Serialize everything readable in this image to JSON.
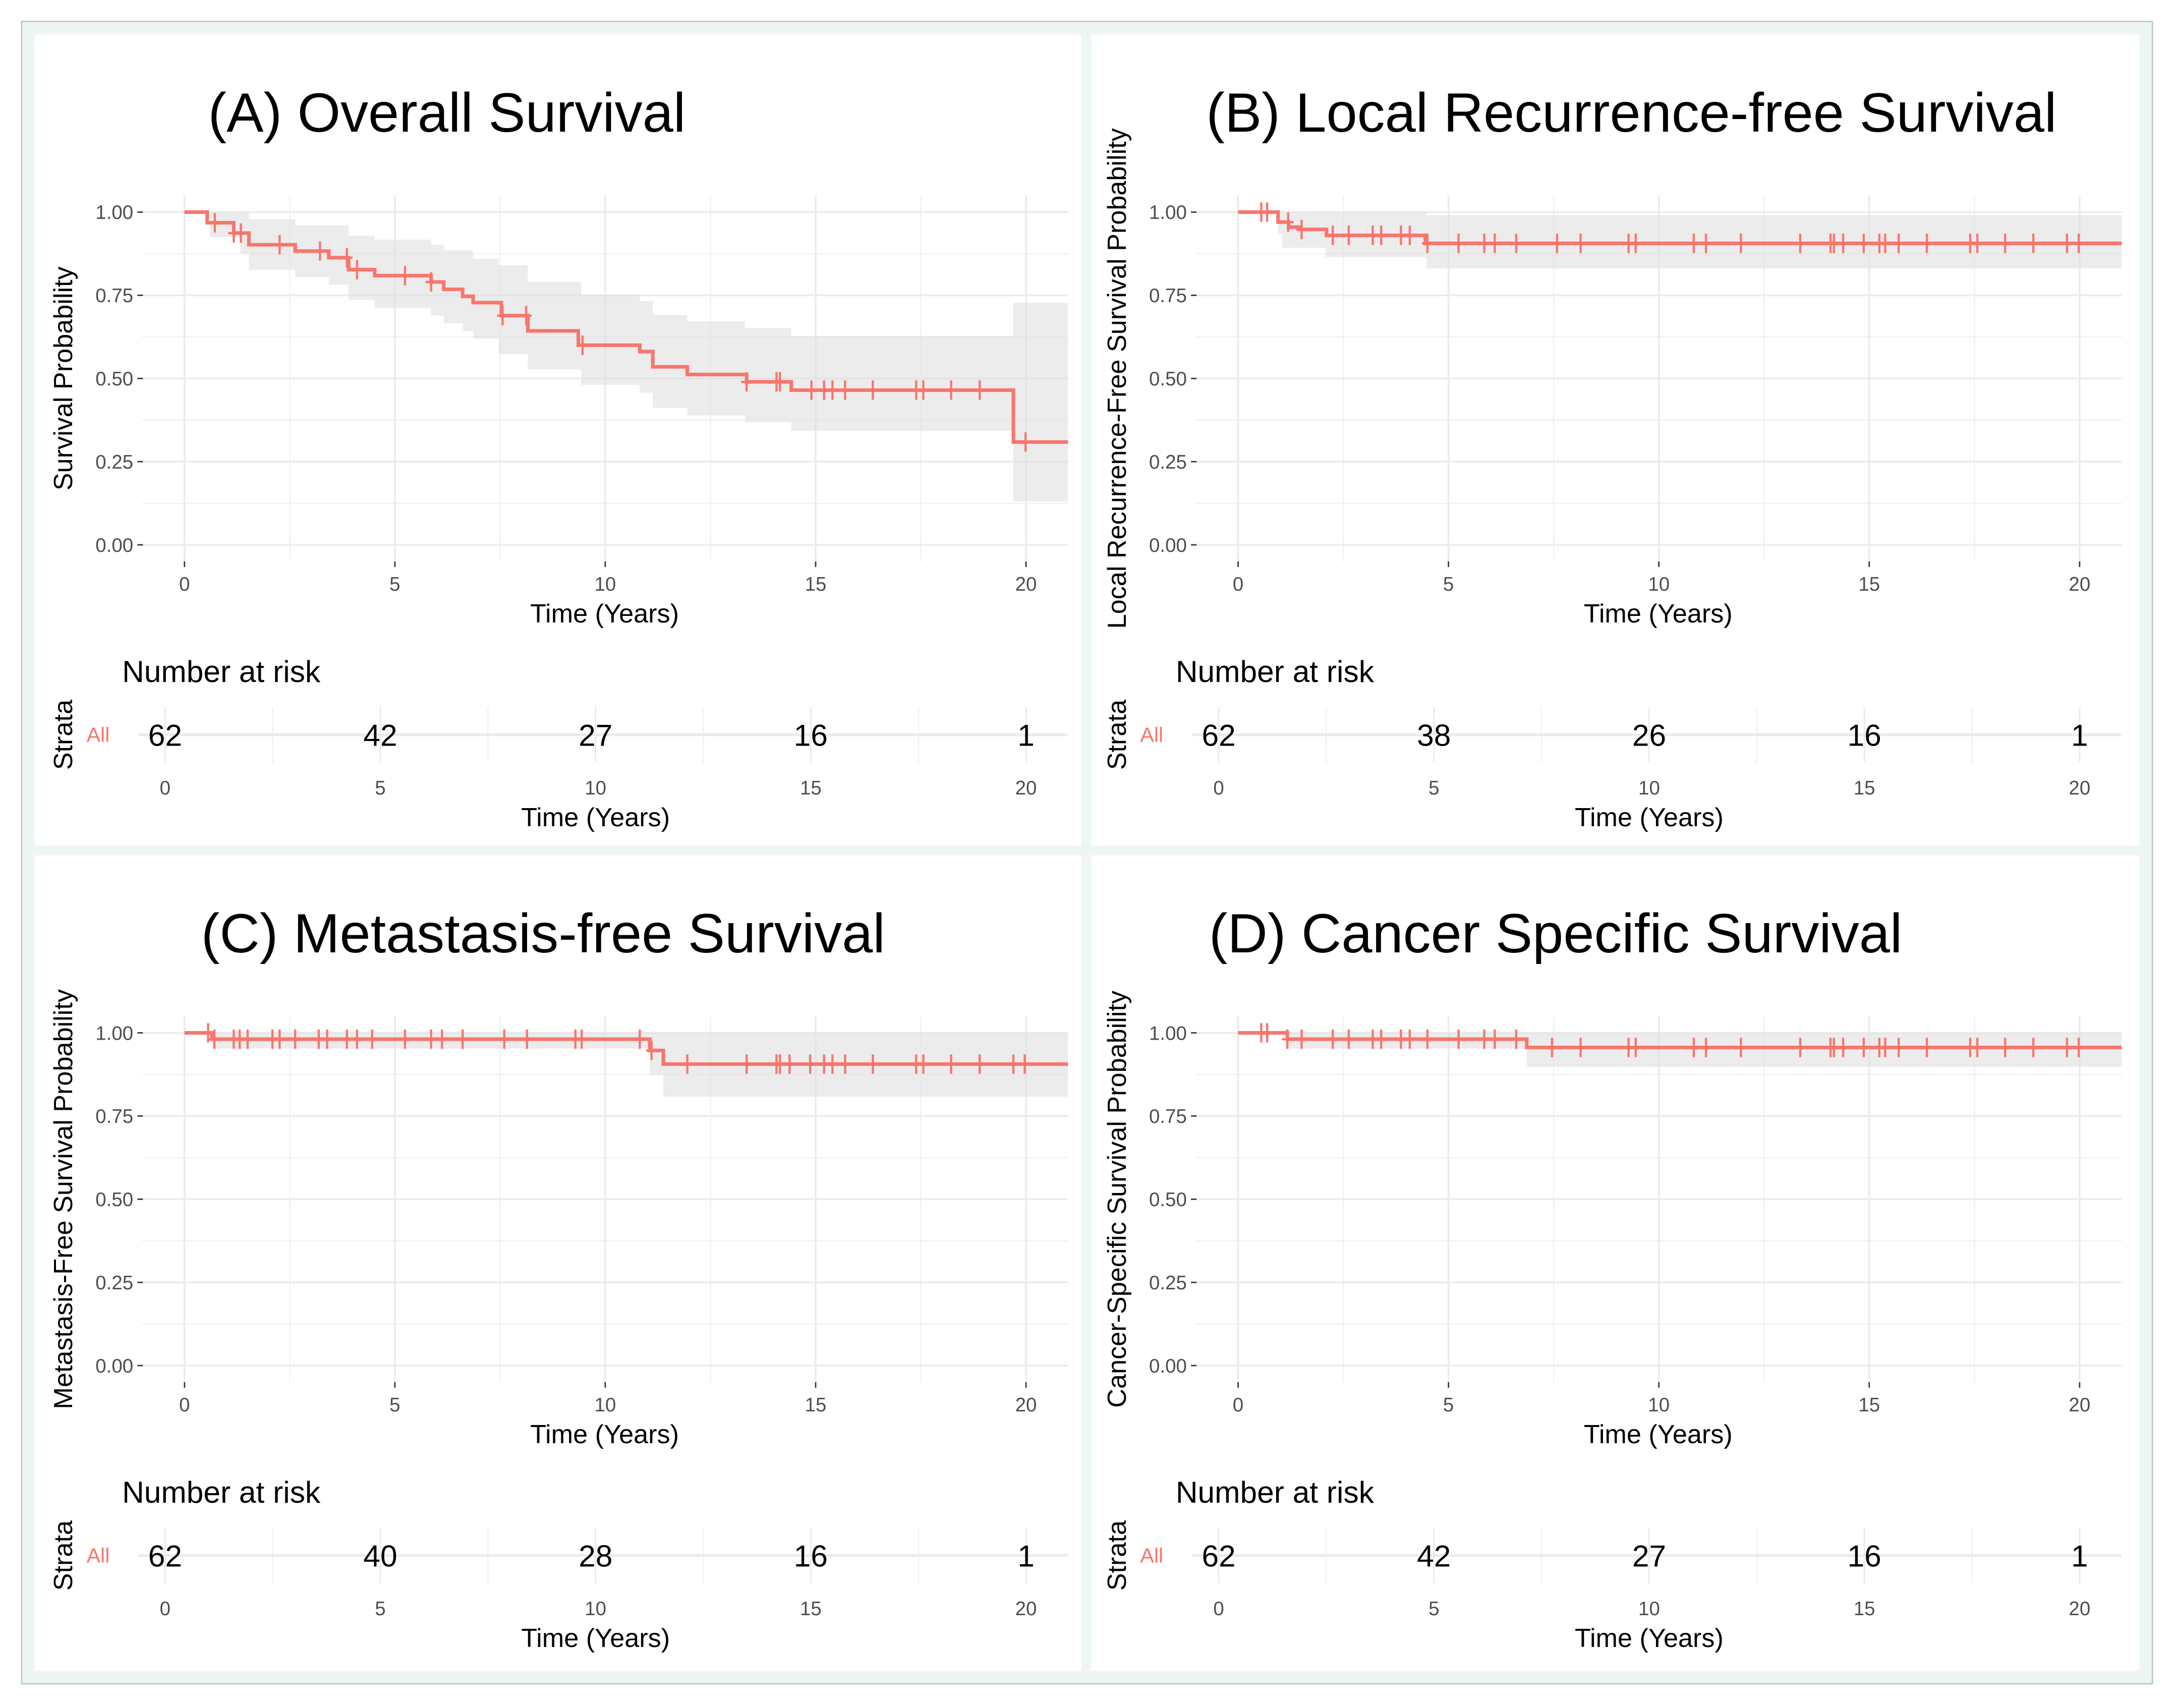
{
  "colors": {
    "line": "#F8766D",
    "ci": "#e0e0e0",
    "grid": "#ebebeb",
    "frame": "#eef6f4",
    "border": "#b9cbc6"
  },
  "chart_data": [
    {
      "type": "line",
      "title": "(A) Overall Survival",
      "ylabel": "Survival Probability",
      "xlabel": "Time (Years)",
      "xlim": [
        -1,
        21
      ],
      "ylim": [
        0,
        1
      ],
      "xticks": [
        "0",
        "5",
        "10",
        "15",
        "20"
      ],
      "yticks": [
        "0.00",
        "0.25",
        "0.50",
        "0.75",
        "1.00"
      ],
      "steps": [
        [
          0,
          1
        ],
        [
          0.54,
          0.968
        ],
        [
          1.17,
          0.937
        ],
        [
          1.53,
          0.902
        ],
        [
          2.63,
          0.883
        ],
        [
          3.43,
          0.863
        ],
        [
          3.9,
          0.827
        ],
        [
          4.52,
          0.809
        ],
        [
          5.86,
          0.79
        ],
        [
          6.16,
          0.768
        ],
        [
          6.61,
          0.747
        ],
        [
          6.86,
          0.728
        ],
        [
          7.53,
          0.689
        ],
        [
          8.16,
          0.643
        ],
        [
          9.36,
          0.6
        ],
        [
          10.82,
          0.581
        ],
        [
          11.13,
          0.535
        ],
        [
          11.95,
          0.512
        ],
        [
          13.36,
          0.49
        ],
        [
          14.42,
          0.465
        ],
        [
          19.7,
          0.309
        ]
      ],
      "ci_upper": [
        [
          0,
          1
        ],
        [
          1.53,
          0.979
        ],
        [
          2.63,
          0.96
        ],
        [
          3.9,
          0.929
        ],
        [
          4.52,
          0.917
        ],
        [
          5.86,
          0.902
        ],
        [
          6.16,
          0.886
        ],
        [
          6.86,
          0.86
        ],
        [
          7.46,
          0.84
        ],
        [
          8.16,
          0.79
        ],
        [
          9.43,
          0.751
        ],
        [
          10.82,
          0.732
        ],
        [
          11.13,
          0.691
        ],
        [
          11.95,
          0.672
        ],
        [
          13.32,
          0.652
        ],
        [
          14.42,
          0.628
        ],
        [
          19.7,
          0.728
        ]
      ],
      "ci_lower": [
        [
          0,
          1
        ],
        [
          0.6,
          0.925
        ],
        [
          1.33,
          0.875
        ],
        [
          1.53,
          0.827
        ],
        [
          2.63,
          0.805
        ],
        [
          3.43,
          0.782
        ],
        [
          3.9,
          0.736
        ],
        [
          4.52,
          0.712
        ],
        [
          5.86,
          0.689
        ],
        [
          6.16,
          0.666
        ],
        [
          6.61,
          0.643
        ],
        [
          6.86,
          0.62
        ],
        [
          7.46,
          0.573
        ],
        [
          8.16,
          0.527
        ],
        [
          9.43,
          0.481
        ],
        [
          10.82,
          0.457
        ],
        [
          11.13,
          0.411
        ],
        [
          11.95,
          0.389
        ],
        [
          13.32,
          0.369
        ],
        [
          14.42,
          0.342
        ],
        [
          19.7,
          0.131
        ]
      ],
      "censored": [
        0.72,
        1.17,
        1.34,
        2.26,
        3.22,
        3.86,
        4.1,
        5.24,
        5.86,
        7.56,
        8.12,
        9.46,
        13.36,
        14.07,
        14.15,
        14.9,
        15.2,
        15.4,
        15.7,
        16.36,
        17.39,
        17.56,
        18.22,
        18.9,
        19.99
      ],
      "risk_table": {
        "title": "Number at risk",
        "strata_label": "Strata",
        "group": "All",
        "times": [
          0,
          5,
          10,
          15,
          20
        ],
        "counts": [
          "62",
          "42",
          "27",
          "16",
          "1"
        ],
        "xticks": [
          "0",
          "5",
          "10",
          "15",
          "20"
        ],
        "xlabel": "Time (Years)"
      }
    },
    {
      "type": "line",
      "title": "(B) Local Recurrence-free Survival",
      "ylabel": "Local Recurrence-Free Survival Probability",
      "xlabel": "Time (Years)",
      "xlim": [
        -1,
        21
      ],
      "ylim": [
        0,
        1
      ],
      "xticks": [
        "0",
        "5",
        "10",
        "15",
        "20"
      ],
      "yticks": [
        "0.00",
        "0.25",
        "0.50",
        "0.75",
        "1.00"
      ],
      "steps": [
        [
          0,
          1
        ],
        [
          0.95,
          0.97
        ],
        [
          1.2,
          0.955
        ],
        [
          1.45,
          0.948
        ],
        [
          2.1,
          0.93
        ],
        [
          4.45,
          0.906
        ]
      ],
      "ci_upper": [
        [
          0,
          1
        ],
        [
          4.48,
          0.991
        ]
      ],
      "ci_lower": [
        [
          0,
          1
        ],
        [
          0.95,
          0.935
        ],
        [
          1.05,
          0.893
        ],
        [
          2.08,
          0.865
        ],
        [
          4.48,
          0.831
        ]
      ],
      "censored": [
        0.55,
        0.69,
        1.19,
        1.51,
        2.25,
        2.63,
        3.2,
        3.4,
        3.87,
        4.08,
        4.5,
        5.24,
        5.85,
        6.1,
        6.61,
        7.58,
        8.14,
        9.28,
        9.45,
        10.83,
        11.12,
        11.95,
        13.36,
        14.08,
        14.16,
        14.38,
        14.87,
        15.24,
        15.38,
        15.7,
        16.37,
        17.4,
        17.57,
        18.23,
        18.9,
        19.7,
        19.98
      ],
      "risk_table": {
        "title": "Number at risk",
        "strata_label": "Strata",
        "group": "All",
        "times": [
          0,
          5,
          10,
          15,
          20
        ],
        "counts": [
          "62",
          "38",
          "26",
          "16",
          "1"
        ],
        "xticks": [
          "0",
          "5",
          "10",
          "15",
          "20"
        ],
        "xlabel": "Time (Years)"
      }
    },
    {
      "type": "line",
      "title": "(C) Metastasis-free Survival",
      "ylabel": "Metastasis-Free Survival Probability",
      "xlabel": "Time (Years)",
      "xlim": [
        -1,
        21
      ],
      "ylim": [
        0,
        1
      ],
      "xticks": [
        "0",
        "5",
        "10",
        "15",
        "20"
      ],
      "yticks": [
        "0.00",
        "0.25",
        "0.50",
        "0.75",
        "1.00"
      ],
      "steps": [
        [
          0,
          1
        ],
        [
          0.65,
          0.981
        ],
        [
          11.06,
          0.947
        ],
        [
          11.38,
          0.906
        ]
      ],
      "ci_upper": [
        [
          0,
          1
        ]
      ],
      "ci_lower": [
        [
          0,
          1
        ],
        [
          0.65,
          0.953
        ],
        [
          11.06,
          0.873
        ],
        [
          11.38,
          0.808
        ]
      ],
      "censored": [
        0.56,
        0.71,
        1.17,
        1.31,
        1.5,
        2.09,
        2.26,
        2.63,
        3.19,
        3.39,
        3.86,
        4.1,
        4.46,
        5.24,
        5.86,
        6.12,
        6.61,
        7.6,
        8.14,
        9.29,
        9.44,
        10.82,
        11.1,
        11.95,
        13.36,
        14.07,
        14.15,
        14.38,
        14.87,
        15.2,
        15.4,
        15.7,
        16.36,
        17.39,
        17.56,
        18.22,
        18.9,
        19.7,
        19.97
      ],
      "risk_table": {
        "title": "Number at risk",
        "strata_label": "Strata",
        "group": "All",
        "times": [
          0,
          5,
          10,
          15,
          20
        ],
        "counts": [
          "62",
          "40",
          "28",
          "16",
          "1"
        ],
        "xticks": [
          "0",
          "5",
          "10",
          "15",
          "20"
        ],
        "xlabel": "Time (Years)"
      }
    },
    {
      "type": "line",
      "title": "(D) Cancer Specific Survival",
      "ylabel": "Cancer-Specific Survival Probability",
      "xlabel": "Time (Years)",
      "xlim": [
        -1,
        21
      ],
      "ylim": [
        0,
        1
      ],
      "xticks": [
        "0",
        "5",
        "10",
        "15",
        "20"
      ],
      "yticks": [
        "0.00",
        "0.25",
        "0.50",
        "0.75",
        "1.00"
      ],
      "steps": [
        [
          0,
          1
        ],
        [
          1.17,
          0.981
        ],
        [
          6.86,
          0.956
        ]
      ],
      "ci_upper": [
        [
          0,
          1
        ]
      ],
      "ci_lower": [
        [
          0,
          1
        ],
        [
          1.17,
          0.953
        ],
        [
          6.86,
          0.898
        ]
      ],
      "censored": [
        0.55,
        0.69,
        1.17,
        1.51,
        2.25,
        2.63,
        3.2,
        3.4,
        3.87,
        4.08,
        4.5,
        5.24,
        5.85,
        6.1,
        6.61,
        7.46,
        8.14,
        9.28,
        9.45,
        10.83,
        11.12,
        11.95,
        13.36,
        14.08,
        14.16,
        14.38,
        14.87,
        15.24,
        15.38,
        15.7,
        16.37,
        17.4,
        17.57,
        18.23,
        18.9,
        19.7,
        19.98
      ],
      "risk_table": {
        "title": "Number at risk",
        "strata_label": "Strata",
        "group": "All",
        "times": [
          0,
          5,
          10,
          15,
          20
        ],
        "counts": [
          "62",
          "42",
          "27",
          "16",
          "1"
        ],
        "xticks": [
          "0",
          "5",
          "10",
          "15",
          "20"
        ],
        "xlabel": "Time (Years)"
      }
    }
  ]
}
